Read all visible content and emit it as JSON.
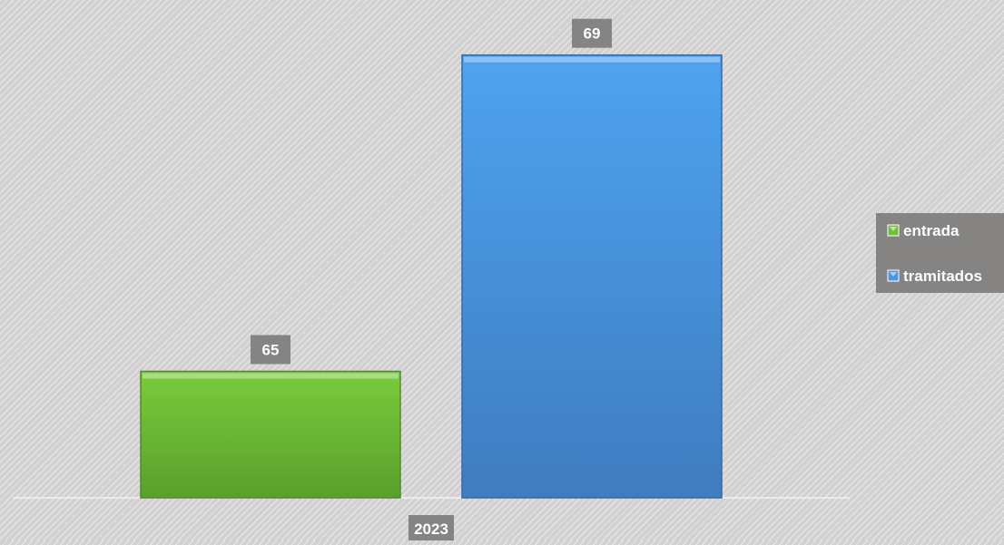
{
  "chart_data": {
    "type": "bar",
    "categories": [
      "2023"
    ],
    "series": [
      {
        "name": "entrada",
        "values": [
          65
        ],
        "color": "#6ec03a"
      },
      {
        "name": "tramitados",
        "values": [
          69
        ],
        "color": "#4a97de"
      }
    ],
    "title": "",
    "xlabel": "",
    "ylabel": "",
    "ylim": [
      63.4,
      69.1
    ],
    "grid": false,
    "legend_position": "right",
    "data_labels": true
  },
  "colors": {
    "background": "#d2d0d0",
    "label_box": "#858483",
    "axis_line": "#f0f0f0"
  }
}
